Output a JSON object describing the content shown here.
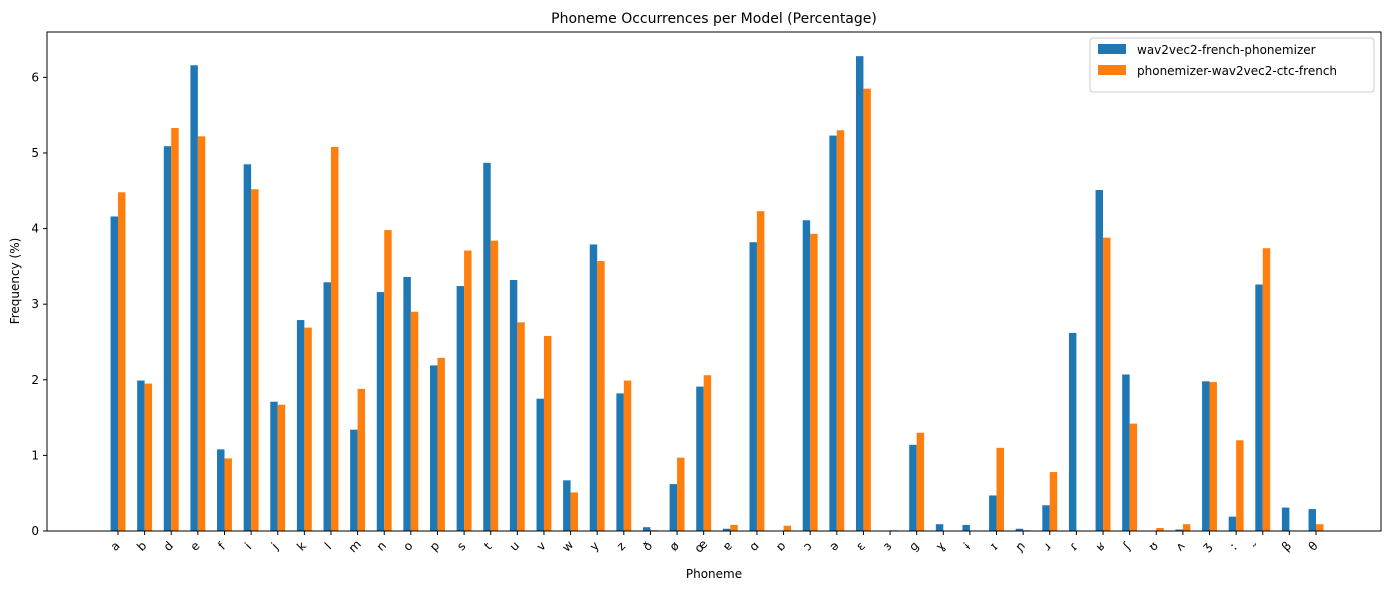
{
  "chart_data": {
    "type": "bar",
    "title": "Phoneme Occurrences per Model (Percentage)",
    "xlabel": "Phoneme",
    "ylabel": "Frequency (%)",
    "ylim": [
      0,
      6.6
    ],
    "yticks": [
      0,
      1,
      2,
      3,
      4,
      5,
      6
    ],
    "grid": false,
    "legend_position": "top-right",
    "categories": [
      "a",
      "b",
      "d",
      "e",
      "f",
      "i",
      "j",
      "k",
      "l",
      "m",
      "n",
      "o",
      "p",
      "s",
      "t",
      "u",
      "v",
      "w",
      "y",
      "z",
      "ð",
      "ø",
      "œ",
      "ɐ",
      "ɑ",
      "ɒ",
      "ɔ",
      "ə",
      "ɛ",
      "ɜ",
      "ɡ",
      "ɣ",
      "ɨ",
      "ɪ",
      "ɲ",
      "ɹ",
      "ɾ",
      "ʁ",
      "ʃ",
      "ʊ",
      "ʌ",
      "ʒ",
      "ː",
      "̃",
      "β",
      "θ"
    ],
    "series": [
      {
        "name": "wav2vec2-french-phonemizer",
        "color": "#1f77b4",
        "values": [
          4.16,
          1.99,
          5.09,
          6.16,
          1.08,
          4.85,
          1.71,
          2.79,
          3.29,
          1.34,
          3.16,
          3.36,
          2.19,
          3.24,
          4.87,
          3.32,
          1.75,
          0.67,
          3.79,
          1.82,
          0.05,
          0.62,
          1.91,
          0.03,
          3.82,
          0.0,
          4.11,
          5.23,
          6.28,
          0.0,
          1.14,
          0.09,
          0.08,
          0.47,
          0.03,
          0.34,
          2.62,
          4.51,
          2.07,
          0.0,
          0.02,
          1.98,
          0.19,
          3.26,
          0.31,
          0.29
        ]
      },
      {
        "name": "phonemizer-wav2vec2-ctc-french",
        "color": "#ff7f0e",
        "values": [
          4.48,
          1.95,
          5.33,
          5.22,
          0.96,
          4.52,
          1.67,
          2.69,
          5.08,
          1.88,
          3.98,
          2.9,
          2.29,
          3.71,
          3.84,
          2.76,
          2.58,
          0.51,
          3.57,
          1.99,
          0.01,
          0.97,
          2.06,
          0.08,
          4.23,
          0.07,
          3.93,
          5.3,
          5.85,
          0.01,
          1.3,
          0.0,
          0.0,
          1.1,
          0.01,
          0.78,
          0.0,
          3.88,
          1.42,
          0.04,
          0.09,
          1.97,
          1.2,
          3.74,
          0.0,
          0.09
        ]
      }
    ]
  }
}
